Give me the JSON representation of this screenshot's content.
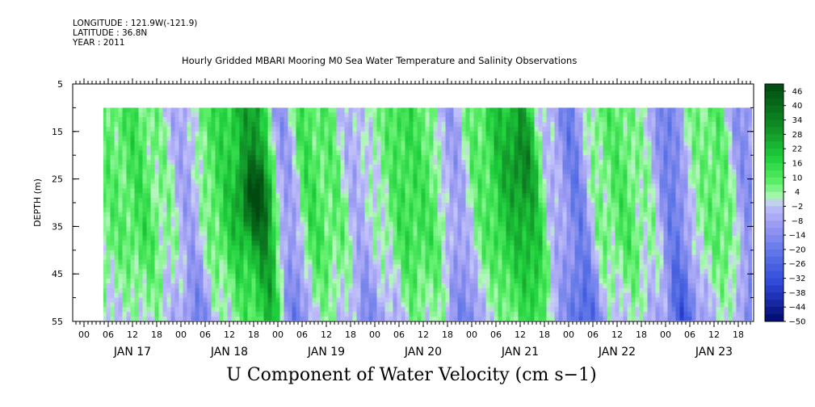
{
  "header": {
    "longitude": "LONGITUDE : 121.9W(-121.9)",
    "latitude": "LATITUDE : 36.8N",
    "year": "YEAR : 2011",
    "title": "Hourly Gridded MBARI Mooring M0 Sea Water Temperature and Salinity Observations"
  },
  "footer": {
    "variable_title": "U Component of Water Velocity (cm s−1)"
  },
  "chart_data": {
    "type": "heatmap",
    "title": "Hourly Gridded MBARI Mooring M0 Sea Water Temperature and Salinity Observations",
    "xlabel": "",
    "ylabel": "DEPTH (m)",
    "variable": "U Component of Water Velocity (cm s−1)",
    "x_hour_ticks": [
      "00",
      "06",
      "12",
      "18",
      "00",
      "06",
      "12",
      "18",
      "00",
      "06",
      "12",
      "18",
      "00",
      "06",
      "12",
      "18",
      "00",
      "06",
      "12",
      "18",
      "00",
      "06",
      "12",
      "18",
      "00",
      "06",
      "12",
      "18"
    ],
    "x_day_labels": [
      "JAN 17",
      "JAN 18",
      "JAN 19",
      "JAN 20",
      "JAN 21",
      "JAN 22",
      "JAN 23"
    ],
    "y_ticks": [
      "5",
      "15",
      "25",
      "35",
      "45",
      "55"
    ],
    "ylim": [
      5,
      55
    ],
    "data_depth_range": [
      10,
      55
    ],
    "data_time_range_hours": [
      4.5,
      168.5
    ],
    "colorbar_labels": [
      "46",
      "40",
      "34",
      "28",
      "22",
      "16",
      "10",
      "4",
      "−2",
      "−8",
      "−14",
      "−20",
      "−26",
      "−32",
      "−38",
      "−44",
      "−50"
    ],
    "colorbar_range": [
      -50,
      49
    ],
    "colors": {
      "positive_darkest": "#004a10",
      "positive_dark": "#0f8a25",
      "positive_mid": "#1fcf3c",
      "positive_light": "#5df06a",
      "positive_pale": "#b5f8bc",
      "negative_pale": "#c4c4fb",
      "negative_light": "#9a9af2",
      "negative_mid": "#5b74e6",
      "negative_dark": "#2c44d6",
      "negative_darkest": "#000a6a"
    },
    "column_means": [
      {
        "day": 17,
        "hour": 6,
        "u": 8
      },
      {
        "day": 17,
        "hour": 12,
        "u": 12
      },
      {
        "day": 17,
        "hour": 18,
        "u": 4
      },
      {
        "day": 18,
        "hour": 0,
        "u": -8
      },
      {
        "day": 18,
        "hour": 6,
        "u": 10
      },
      {
        "day": 18,
        "hour": 12,
        "u": 18
      },
      {
        "day": 18,
        "hour": 18,
        "u": 30
      },
      {
        "day": 19,
        "hour": 0,
        "u": -12
      },
      {
        "day": 19,
        "hour": 6,
        "u": 12
      },
      {
        "day": 19,
        "hour": 12,
        "u": 8
      },
      {
        "day": 19,
        "hour": 18,
        "u": -6
      },
      {
        "day": 20,
        "hour": 0,
        "u": 4
      },
      {
        "day": 20,
        "hour": 6,
        "u": 14
      },
      {
        "day": 20,
        "hour": 12,
        "u": 10
      },
      {
        "day": 20,
        "hour": 18,
        "u": -10
      },
      {
        "day": 21,
        "hour": 0,
        "u": 8
      },
      {
        "day": 21,
        "hour": 6,
        "u": 18
      },
      {
        "day": 21,
        "hour": 12,
        "u": 24
      },
      {
        "day": 21,
        "hour": 18,
        "u": -4
      },
      {
        "day": 22,
        "hour": 0,
        "u": -18
      },
      {
        "day": 22,
        "hour": 6,
        "u": 6
      },
      {
        "day": 22,
        "hour": 12,
        "u": 10
      },
      {
        "day": 22,
        "hour": 18,
        "u": 2
      },
      {
        "day": 23,
        "hour": 0,
        "u": -20
      },
      {
        "day": 23,
        "hour": 6,
        "u": 4
      },
      {
        "day": 23,
        "hour": 12,
        "u": 10
      },
      {
        "day": 23,
        "hour": 18,
        "u": -12
      }
    ]
  }
}
